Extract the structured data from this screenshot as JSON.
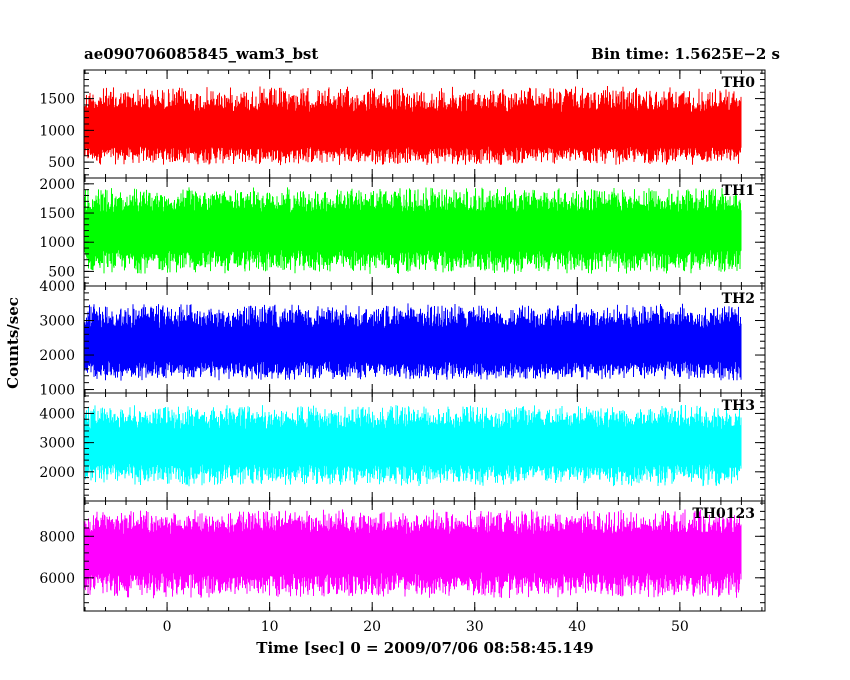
{
  "chart_data": {
    "type": "line",
    "title_left": "ae090706085845_wam3_bst",
    "title_right": "Bin time: 1.5625E−2 s",
    "xlabel": "Time [sec] 0 = 2009/07/06 08:58:45.149",
    "ylabel": "Counts/sec",
    "xlim": [
      -8.1,
      58.3
    ],
    "x_ticks": [
      0,
      10,
      20,
      30,
      40,
      50
    ],
    "x_data_range": [
      -8.0,
      56.0
    ],
    "grid": false,
    "panels": [
      {
        "name": "TH0",
        "color": "#ff0000",
        "ylim": [
          250,
          1950
        ],
        "y_ticks": [
          500,
          1000,
          1500
        ],
        "level_mean": 950,
        "level_low": 450,
        "level_high": 1700
      },
      {
        "name": "TH1",
        "color": "#00ff00",
        "ylim": [
          250,
          2100
        ],
        "y_ticks": [
          500,
          1000,
          1500,
          2000
        ],
        "level_mean": 1150,
        "level_low": 450,
        "level_high": 1950
      },
      {
        "name": "TH2",
        "color": "#0000ff",
        "ylim": [
          900,
          4000
        ],
        "y_ticks": [
          1000,
          2000,
          3000,
          4000
        ],
        "level_mean": 2200,
        "level_low": 1250,
        "level_high": 3500
      },
      {
        "name": "TH3",
        "color": "#00ffff",
        "ylim": [
          1000,
          4700
        ],
        "y_ticks": [
          2000,
          3000,
          4000
        ],
        "level_mean": 2800,
        "level_low": 1500,
        "level_high": 4300
      },
      {
        "name": "TH0123",
        "color": "#ff00ff",
        "ylim": [
          4400,
          9700
        ],
        "y_ticks": [
          6000,
          8000
        ],
        "level_mean": 7100,
        "level_low": 5000,
        "level_high": 9300
      }
    ]
  }
}
